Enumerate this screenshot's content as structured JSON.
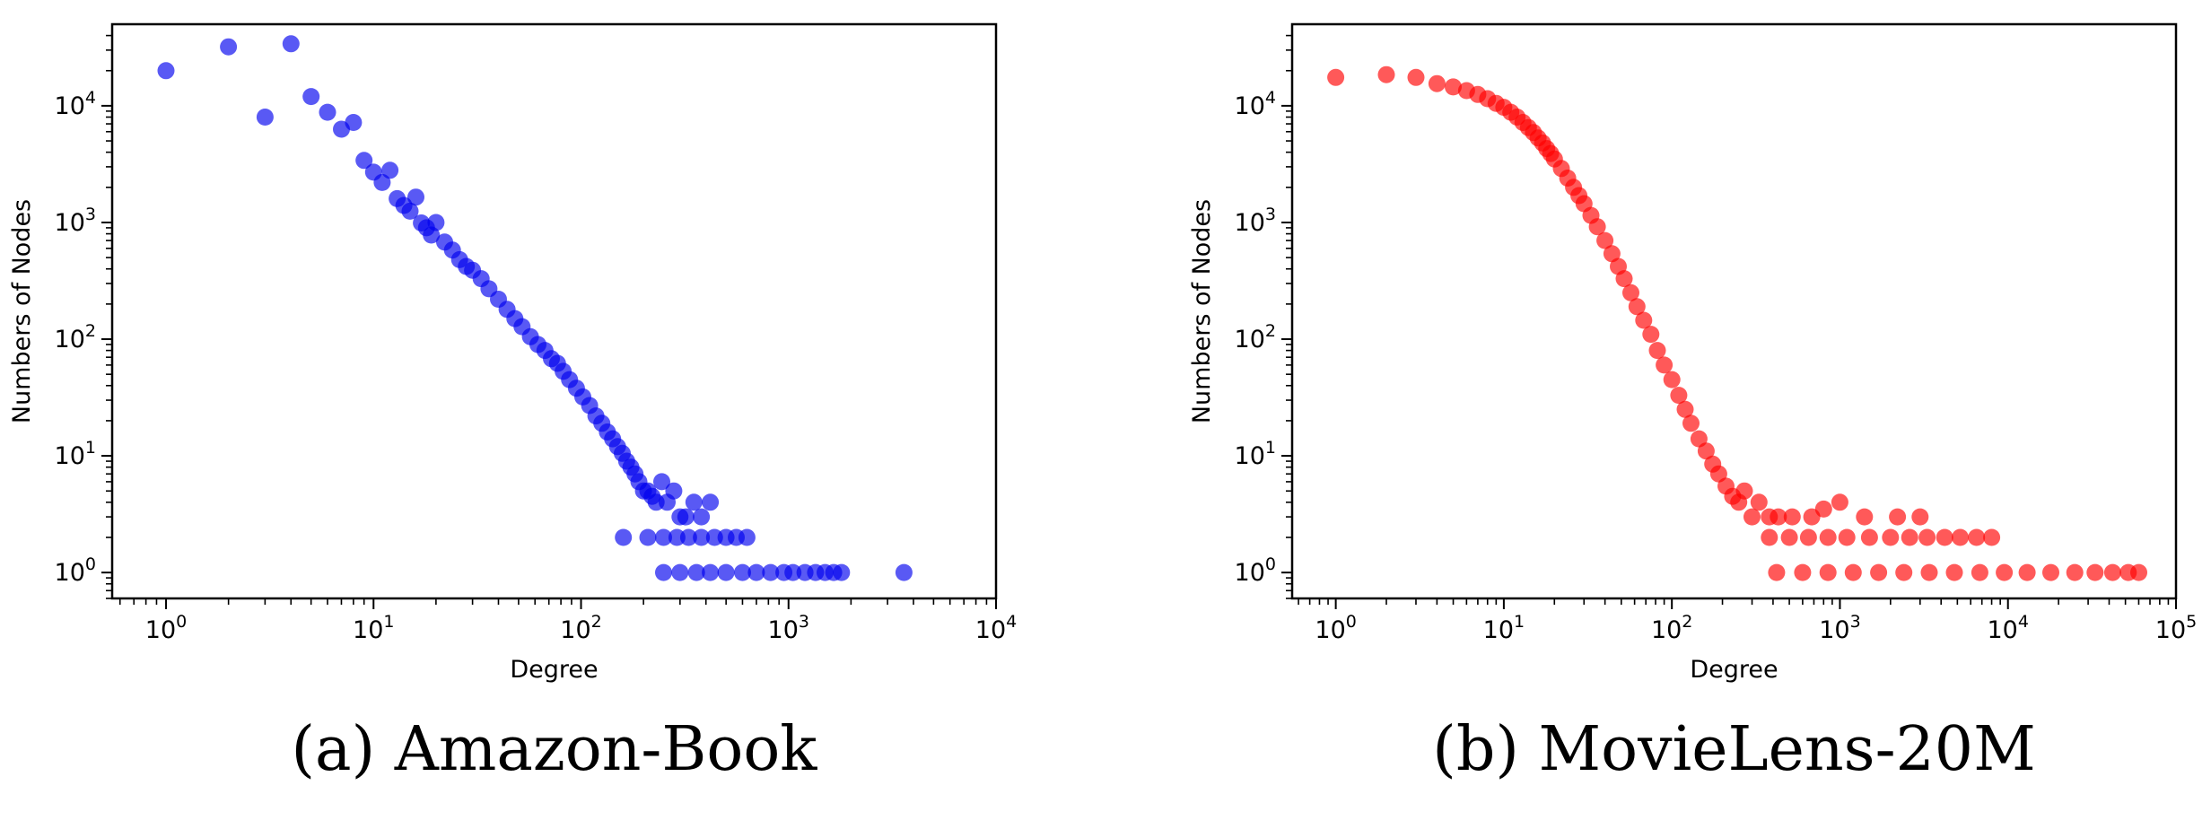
{
  "chart_data": [
    {
      "type": "scatter",
      "xlabel": "Degree",
      "ylabel": "Numbers of Nodes",
      "caption": "(a) Amazon-Book",
      "xscale": "log",
      "yscale": "log",
      "xlim": [
        0.55,
        10000
      ],
      "ylim": [
        0.6,
        50000
      ],
      "xticks": [
        1,
        10,
        100,
        1000,
        10000
      ],
      "xtick_labels": [
        {
          "base": "10",
          "exp": "0"
        },
        {
          "base": "10",
          "exp": "1"
        },
        {
          "base": "10",
          "exp": "2"
        },
        {
          "base": "10",
          "exp": "3"
        },
        {
          "base": "10",
          "exp": "4"
        }
      ],
      "yticks": [
        1,
        10,
        100,
        1000,
        10000
      ],
      "ytick_labels": [
        {
          "base": "10",
          "exp": "0"
        },
        {
          "base": "10",
          "exp": "1"
        },
        {
          "base": "10",
          "exp": "2"
        },
        {
          "base": "10",
          "exp": "3"
        },
        {
          "base": "10",
          "exp": "4"
        }
      ],
      "grid": false,
      "color": "#0000ee",
      "opacity": 0.65,
      "points": [
        [
          1,
          20000
        ],
        [
          2,
          32000
        ],
        [
          3,
          8000
        ],
        [
          4,
          34000
        ],
        [
          5,
          12000
        ],
        [
          6,
          8800
        ],
        [
          7,
          6300
        ],
        [
          8,
          7200
        ],
        [
          9,
          3400
        ],
        [
          10,
          2700
        ],
        [
          11,
          2200
        ],
        [
          12,
          2800
        ],
        [
          13,
          1600
        ],
        [
          14,
          1400
        ],
        [
          15,
          1250
        ],
        [
          16,
          1650
        ],
        [
          17,
          990
        ],
        [
          18,
          900
        ],
        [
          19,
          780
        ],
        [
          20,
          1000
        ],
        [
          22,
          680
        ],
        [
          24,
          580
        ],
        [
          26,
          480
        ],
        [
          28,
          420
        ],
        [
          30,
          390
        ],
        [
          33,
          330
        ],
        [
          36,
          270
        ],
        [
          40,
          220
        ],
        [
          44,
          180
        ],
        [
          48,
          150
        ],
        [
          52,
          128
        ],
        [
          57,
          105
        ],
        [
          62,
          90
        ],
        [
          67,
          80
        ],
        [
          72,
          68
        ],
        [
          77,
          62
        ],
        [
          82,
          53
        ],
        [
          88,
          45
        ],
        [
          95,
          38
        ],
        [
          102,
          32
        ],
        [
          110,
          27
        ],
        [
          118,
          22
        ],
        [
          126,
          19
        ],
        [
          134,
          16
        ],
        [
          142,
          14
        ],
        [
          150,
          12
        ],
        [
          158,
          10.5
        ],
        [
          166,
          9
        ],
        [
          174,
          8
        ],
        [
          182,
          7
        ],
        [
          190,
          6
        ],
        [
          200,
          5
        ],
        [
          210,
          5
        ],
        [
          220,
          4.5
        ],
        [
          230,
          4
        ],
        [
          245,
          6
        ],
        [
          260,
          4
        ],
        [
          280,
          5
        ],
        [
          300,
          3
        ],
        [
          320,
          3
        ],
        [
          350,
          4
        ],
        [
          380,
          3
        ],
        [
          420,
          4
        ],
        [
          160,
          2
        ],
        [
          210,
          2
        ],
        [
          250,
          2
        ],
        [
          290,
          2
        ],
        [
          330,
          2
        ],
        [
          380,
          2
        ],
        [
          440,
          2
        ],
        [
          500,
          2
        ],
        [
          560,
          2
        ],
        [
          630,
          2
        ],
        [
          250,
          1
        ],
        [
          300,
          1
        ],
        [
          360,
          1
        ],
        [
          420,
          1
        ],
        [
          500,
          1
        ],
        [
          600,
          1
        ],
        [
          700,
          1
        ],
        [
          820,
          1
        ],
        [
          950,
          1
        ],
        [
          1050,
          1
        ],
        [
          1200,
          1
        ],
        [
          1350,
          1
        ],
        [
          1500,
          1
        ],
        [
          1650,
          1
        ],
        [
          1800,
          1
        ],
        [
          3600,
          1
        ]
      ]
    },
    {
      "type": "scatter",
      "xlabel": "Degree",
      "ylabel": "Numbers of Nodes",
      "caption": "(b) MovieLens-20M",
      "xscale": "log",
      "yscale": "log",
      "xlim": [
        0.55,
        100000
      ],
      "ylim": [
        0.6,
        50000
      ],
      "xticks": [
        1,
        10,
        100,
        1000,
        10000,
        100000
      ],
      "xtick_labels": [
        {
          "base": "10",
          "exp": "0"
        },
        {
          "base": "10",
          "exp": "1"
        },
        {
          "base": "10",
          "exp": "2"
        },
        {
          "base": "10",
          "exp": "3"
        },
        {
          "base": "10",
          "exp": "4"
        },
        {
          "base": "10",
          "exp": "5"
        }
      ],
      "yticks": [
        1,
        10,
        100,
        1000,
        10000
      ],
      "ytick_labels": [
        {
          "base": "10",
          "exp": "0"
        },
        {
          "base": "10",
          "exp": "1"
        },
        {
          "base": "10",
          "exp": "2"
        },
        {
          "base": "10",
          "exp": "3"
        },
        {
          "base": "10",
          "exp": "4"
        }
      ],
      "grid": false,
      "color": "#ff0000",
      "opacity": 0.65,
      "points": [
        [
          1,
          17500
        ],
        [
          2,
          18500
        ],
        [
          3,
          17500
        ],
        [
          4,
          15500
        ],
        [
          5,
          14500
        ],
        [
          6,
          13500
        ],
        [
          7,
          12500
        ],
        [
          8,
          11500
        ],
        [
          9,
          10500
        ],
        [
          10,
          9700
        ],
        [
          11,
          8800
        ],
        [
          12,
          8000
        ],
        [
          13,
          7200
        ],
        [
          14,
          6500
        ],
        [
          15,
          5900
        ],
        [
          16,
          5300
        ],
        [
          17,
          4800
        ],
        [
          18,
          4300
        ],
        [
          19,
          3900
        ],
        [
          20,
          3500
        ],
        [
          22,
          2900
        ],
        [
          24,
          2400
        ],
        [
          26,
          2000
        ],
        [
          28,
          1700
        ],
        [
          30,
          1450
        ],
        [
          33,
          1150
        ],
        [
          36,
          920
        ],
        [
          40,
          700
        ],
        [
          44,
          540
        ],
        [
          48,
          420
        ],
        [
          52,
          330
        ],
        [
          57,
          250
        ],
        [
          62,
          190
        ],
        [
          68,
          145
        ],
        [
          75,
          110
        ],
        [
          82,
          80
        ],
        [
          90,
          60
        ],
        [
          100,
          45
        ],
        [
          110,
          33
        ],
        [
          120,
          25
        ],
        [
          130,
          19
        ],
        [
          145,
          14
        ],
        [
          160,
          11
        ],
        [
          175,
          8.5
        ],
        [
          190,
          7
        ],
        [
          210,
          5.5
        ],
        [
          230,
          4.5
        ],
        [
          250,
          4
        ],
        [
          270,
          5
        ],
        [
          300,
          3
        ],
        [
          330,
          4
        ],
        [
          380,
          3
        ],
        [
          430,
          3
        ],
        [
          520,
          3
        ],
        [
          680,
          3
        ],
        [
          800,
          3.5
        ],
        [
          1000,
          4
        ],
        [
          1400,
          3
        ],
        [
          2200,
          3
        ],
        [
          3000,
          3
        ],
        [
          380,
          2
        ],
        [
          500,
          2
        ],
        [
          650,
          2
        ],
        [
          850,
          2
        ],
        [
          1100,
          2
        ],
        [
          1500,
          2
        ],
        [
          2000,
          2
        ],
        [
          2600,
          2
        ],
        [
          3300,
          2
        ],
        [
          4200,
          2
        ],
        [
          5200,
          2
        ],
        [
          6500,
          2
        ],
        [
          8000,
          2
        ],
        [
          420,
          1
        ],
        [
          600,
          1
        ],
        [
          850,
          1
        ],
        [
          1200,
          1
        ],
        [
          1700,
          1
        ],
        [
          2400,
          1
        ],
        [
          3400,
          1
        ],
        [
          4800,
          1
        ],
        [
          6800,
          1
        ],
        [
          9500,
          1
        ],
        [
          13000,
          1
        ],
        [
          18000,
          1
        ],
        [
          25000,
          1
        ],
        [
          33000,
          1
        ],
        [
          42000,
          1
        ],
        [
          52000,
          1
        ],
        [
          60000,
          1
        ]
      ]
    }
  ]
}
